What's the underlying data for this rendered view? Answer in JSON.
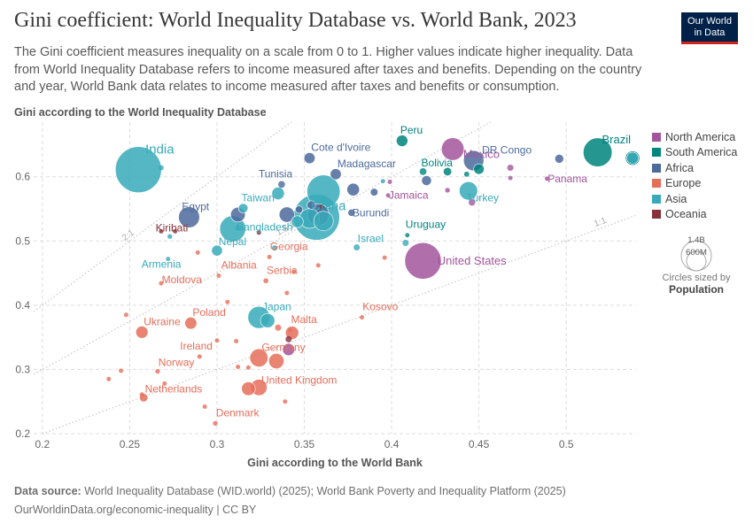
{
  "header": {
    "title": "Gini coefficient: World Inequality Database vs. World Bank, 2023",
    "subtitle": "The Gini coefficient measures inequality on a scale from 0 to 1. Higher values indicate higher inequality. Data from World Inequality Database refers to income measured after taxes and benefits. Depending on the country and year, World Bank data relates to income measured after taxes and benefits or consumption.",
    "logo_line1": "Our World",
    "logo_line2": "in Data"
  },
  "footer": {
    "source_label": "Data source:",
    "source_text": "World Inequality Database (WID.world) (2025); World Bank Poverty and Inequality Platform (2025)",
    "url": "OurWorldinData.org/economic-inequality | CC BY"
  },
  "size_legend": {
    "big": "1.4B",
    "small": "600M",
    "caption": "Circles sized by",
    "caption_bold": "Population"
  },
  "colors": {
    "North America": "#a2559c",
    "South America": "#00847e",
    "Africa": "#4c6a9c",
    "Europe": "#e56e5a",
    "Asia": "#38aaba",
    "Oceania": "#883039"
  },
  "chart_data": {
    "type": "scatter",
    "xlabel": "Gini according to the World Bank",
    "ylabel": "Gini according to the World Inequality Database",
    "xlim": [
      0.195,
      0.54
    ],
    "ylim": [
      0.2,
      0.685
    ],
    "xticks": [
      0.2,
      0.25,
      0.3,
      0.35,
      0.4,
      0.45,
      0.5
    ],
    "yticks": [
      0.2,
      0.3,
      0.4,
      0.5,
      0.6
    ],
    "grid": true,
    "legend": "right",
    "reference_lines": [
      {
        "label": "2:1",
        "slope": 2
      },
      {
        "label": "1.5:1",
        "slope": 1.5
      },
      {
        "label": "1:1",
        "slope": 1
      }
    ],
    "series": [
      {
        "name": "North America",
        "points": [
          {
            "label": "Mexico",
            "x": 0.435,
            "y": 0.643,
            "pop": 130
          },
          {
            "label": "United States",
            "x": 0.418,
            "y": 0.469,
            "pop": 340
          },
          {
            "label": "Panama",
            "x": 0.489,
            "y": 0.597,
            "pop": 4.5
          },
          {
            "label": "Jamaica",
            "x": 0.398,
            "y": 0.571,
            "pop": 2.8
          },
          {
            "label": "",
            "x": 0.468,
            "y": 0.614,
            "pop": 10
          },
          {
            "label": "",
            "x": 0.468,
            "y": 0.598,
            "pop": 5
          },
          {
            "label": "",
            "x": 0.446,
            "y": 0.56,
            "pop": 11
          },
          {
            "label": "",
            "x": 0.432,
            "y": 0.579,
            "pop": 6
          },
          {
            "label": "",
            "x": 0.399,
            "y": 0.592,
            "pop": 3
          },
          {
            "label": "",
            "x": 0.341,
            "y": 0.331,
            "pop": 38
          }
        ]
      },
      {
        "name": "South America",
        "points": [
          {
            "label": "Brazil",
            "x": 0.518,
            "y": 0.638,
            "pop": 212
          },
          {
            "label": "Peru",
            "x": 0.406,
            "y": 0.656,
            "pop": 34
          },
          {
            "label": "Bolivia",
            "x": 0.418,
            "y": 0.608,
            "pop": 12
          },
          {
            "label": "Uruguay",
            "x": 0.409,
            "y": 0.509,
            "pop": 3.4
          },
          {
            "label": "",
            "x": 0.538,
            "y": 0.629,
            "pop": 52
          },
          {
            "label": "",
            "x": 0.432,
            "y": 0.608,
            "pop": 18
          },
          {
            "label": "",
            "x": 0.443,
            "y": 0.604,
            "pop": 7
          },
          {
            "label": "",
            "x": 0.45,
            "y": 0.612,
            "pop": 28
          }
        ]
      },
      {
        "name": "Africa",
        "points": [
          {
            "label": "Cote d'Ivoire",
            "x": 0.353,
            "y": 0.629,
            "pop": 31
          },
          {
            "label": "DR Congo",
            "x": 0.447,
            "y": 0.625,
            "pop": 105
          },
          {
            "label": "Madagascar",
            "x": 0.368,
            "y": 0.604,
            "pop": 31
          },
          {
            "label": "Tunisia",
            "x": 0.337,
            "y": 0.588,
            "pop": 12
          },
          {
            "label": "Egypt",
            "x": 0.284,
            "y": 0.537,
            "pop": 113
          },
          {
            "label": "Burundi",
            "x": 0.377,
            "y": 0.544,
            "pop": 13
          },
          {
            "label": "",
            "x": 0.34,
            "y": 0.541,
            "pop": 60
          },
          {
            "label": "",
            "x": 0.312,
            "y": 0.541,
            "pop": 55
          },
          {
            "label": "",
            "x": 0.496,
            "y": 0.628,
            "pop": 20
          },
          {
            "label": "",
            "x": 0.42,
            "y": 0.594,
            "pop": 25
          },
          {
            "label": "",
            "x": 0.378,
            "y": 0.58,
            "pop": 40
          },
          {
            "label": "",
            "x": 0.39,
            "y": 0.576,
            "pop": 15
          },
          {
            "label": "",
            "x": 0.354,
            "y": 0.556,
            "pop": 18
          },
          {
            "label": "",
            "x": 0.358,
            "y": 0.541,
            "pop": 120
          },
          {
            "label": "",
            "x": 0.347,
            "y": 0.549,
            "pop": 14
          }
        ]
      },
      {
        "name": "Europe",
        "points": [
          {
            "label": "Albania",
            "x": 0.301,
            "y": 0.446,
            "pop": 2.8
          },
          {
            "label": "Moldova",
            "x": 0.268,
            "y": 0.434,
            "pop": 2.5
          },
          {
            "label": "Serbia",
            "x": 0.328,
            "y": 0.438,
            "pop": 6.6
          },
          {
            "label": "Georgia",
            "x": 0.33,
            "y": 0.475,
            "pop": 3.7
          },
          {
            "label": "Poland",
            "x": 0.285,
            "y": 0.372,
            "pop": 37
          },
          {
            "label": "Ukraine",
            "x": 0.257,
            "y": 0.358,
            "pop": 38
          },
          {
            "label": "Malta",
            "x": 0.342,
            "y": 0.361,
            "pop": 0.5
          },
          {
            "label": "Kosovo",
            "x": 0.383,
            "y": 0.381,
            "pop": 1.8
          },
          {
            "label": "Ireland",
            "x": 0.29,
            "y": 0.32,
            "pop": 5.2
          },
          {
            "label": "Germany",
            "x": 0.324,
            "y": 0.318,
            "pop": 84
          },
          {
            "label": "Norway",
            "x": 0.266,
            "y": 0.297,
            "pop": 5.5
          },
          {
            "label": "United Kingdom",
            "x": 0.324,
            "y": 0.272,
            "pop": 68
          },
          {
            "label": "Netherlands",
            "x": 0.258,
            "y": 0.256,
            "pop": 18
          },
          {
            "label": "Denmark",
            "x": 0.299,
            "y": 0.216,
            "pop": 5.9
          },
          {
            "label": "",
            "x": 0.343,
            "y": 0.357,
            "pop": 45
          },
          {
            "label": "",
            "x": 0.334,
            "y": 0.313,
            "pop": 60
          },
          {
            "label": "",
            "x": 0.318,
            "y": 0.27,
            "pop": 48
          },
          {
            "label": "",
            "x": 0.306,
            "y": 0.405,
            "pop": 4
          },
          {
            "label": "",
            "x": 0.344,
            "y": 0.452,
            "pop": 4
          },
          {
            "label": "",
            "x": 0.358,
            "y": 0.462,
            "pop": 3
          },
          {
            "label": "",
            "x": 0.34,
            "y": 0.419,
            "pop": 3
          },
          {
            "label": "",
            "x": 0.396,
            "y": 0.474,
            "pop": 2
          },
          {
            "label": "",
            "x": 0.248,
            "y": 0.385,
            "pop": 2
          },
          {
            "label": "",
            "x": 0.245,
            "y": 0.298,
            "pop": 2
          },
          {
            "label": "",
            "x": 0.238,
            "y": 0.285,
            "pop": 2
          },
          {
            "label": "",
            "x": 0.27,
            "y": 0.278,
            "pop": 3
          },
          {
            "label": "",
            "x": 0.257,
            "y": 0.261,
            "pop": 5
          },
          {
            "label": "",
            "x": 0.3,
            "y": 0.345,
            "pop": 4
          },
          {
            "label": "",
            "x": 0.311,
            "y": 0.344,
            "pop": 3
          },
          {
            "label": "",
            "x": 0.312,
            "y": 0.304,
            "pop": 4
          },
          {
            "label": "",
            "x": 0.318,
            "y": 0.303,
            "pop": 2
          },
          {
            "label": "",
            "x": 0.293,
            "y": 0.242,
            "pop": 2
          },
          {
            "label": "",
            "x": 0.339,
            "y": 0.25,
            "pop": 2
          },
          {
            "label": "",
            "x": 0.335,
            "y": 0.365,
            "pop": 10
          },
          {
            "label": "",
            "x": 0.289,
            "y": 0.482,
            "pop": 2
          }
        ]
      },
      {
        "name": "Asia",
        "points": [
          {
            "label": "India",
            "x": 0.255,
            "y": 0.611,
            "pop": 1430
          },
          {
            "label": "China",
            "x": 0.357,
            "y": 0.537,
            "pop": 1410
          },
          {
            "label": "Taiwan",
            "x": 0.315,
            "y": 0.551,
            "pop": 23
          },
          {
            "label": "Bangladesh",
            "x": 0.309,
            "y": 0.519,
            "pop": 172
          },
          {
            "label": "Nepal",
            "x": 0.3,
            "y": 0.485,
            "pop": 30
          },
          {
            "label": "Armenia",
            "x": 0.272,
            "y": 0.472,
            "pop": 3
          },
          {
            "label": "Israel",
            "x": 0.38,
            "y": 0.49,
            "pop": 9.7
          },
          {
            "label": "Turkey",
            "x": 0.444,
            "y": 0.578,
            "pop": 86
          },
          {
            "label": "Japan",
            "x": 0.324,
            "y": 0.381,
            "pop": 124
          },
          {
            "label": "",
            "x": 0.361,
            "y": 0.577,
            "pop": 280
          },
          {
            "label": "",
            "x": 0.335,
            "y": 0.574,
            "pop": 40
          },
          {
            "label": "",
            "x": 0.353,
            "y": 0.535,
            "pop": 100
          },
          {
            "label": "",
            "x": 0.361,
            "y": 0.531,
            "pop": 98
          },
          {
            "label": "",
            "x": 0.346,
            "y": 0.53,
            "pop": 36
          },
          {
            "label": "",
            "x": 0.329,
            "y": 0.376,
            "pop": 52
          },
          {
            "label": "",
            "x": 0.268,
            "y": 0.614,
            "pop": 7
          },
          {
            "label": "",
            "x": 0.273,
            "y": 0.507,
            "pop": 6
          },
          {
            "label": "",
            "x": 0.333,
            "y": 0.489,
            "pop": 7
          },
          {
            "label": "",
            "x": 0.395,
            "y": 0.593,
            "pop": 5
          },
          {
            "label": "",
            "x": 0.408,
            "y": 0.497,
            "pop": 10
          },
          {
            "label": "",
            "x": 0.538,
            "y": 0.629,
            "pop": 35
          },
          {
            "label": "",
            "x": 0.312,
            "y": 0.52,
            "pop": 8
          }
        ]
      },
      {
        "name": "Oceania",
        "points": [
          {
            "label": "Kiribati",
            "x": 0.276,
            "y": 0.515,
            "pop": 0.13
          },
          {
            "label": "",
            "x": 0.268,
            "y": 0.515,
            "pop": 1
          },
          {
            "label": "",
            "x": 0.324,
            "y": 0.513,
            "pop": 1
          },
          {
            "label": "",
            "x": 0.341,
            "y": 0.347,
            "pop": 10
          },
          {
            "label": "",
            "x": 0.36,
            "y": 0.553,
            "pop": 1
          }
        ]
      }
    ]
  }
}
